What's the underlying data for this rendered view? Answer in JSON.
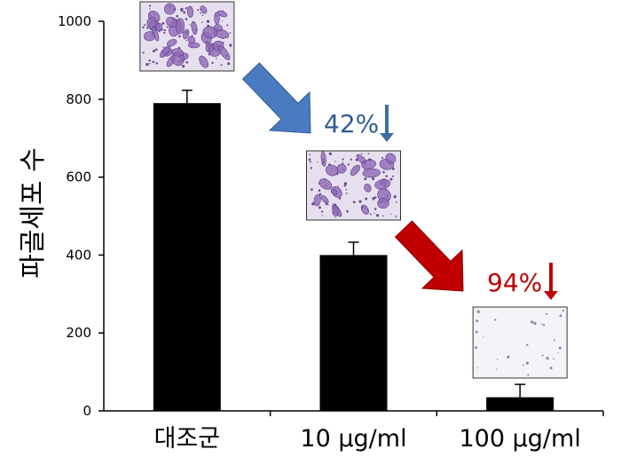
{
  "chart_data": {
    "type": "bar",
    "categories": [
      "대조군",
      "10 μg/ml",
      "100 μg/ml"
    ],
    "values": [
      790,
      400,
      35
    ],
    "errors": [
      33,
      33,
      33
    ],
    "ylabel": "파골세포 수",
    "xlabel": "",
    "title": "",
    "ylim": [
      0,
      1000
    ],
    "yticks": [
      0,
      200,
      400,
      600,
      800,
      1000
    ],
    "bar_color": "#000000",
    "annotations": [
      {
        "text": "42%",
        "color": "#2E5B93",
        "arrow_color": "#4A7BC0",
        "small_arrow_color": "#3D6DA8"
      },
      {
        "text": "94%",
        "color": "#C00000",
        "arrow_color": "#C00000",
        "small_arrow_color": "#C00000"
      }
    ],
    "micrographs": [
      {
        "label": "control-micrograph",
        "density": "high"
      },
      {
        "label": "10ug-micrograph",
        "density": "medium"
      },
      {
        "label": "100ug-micrograph",
        "density": "low"
      }
    ]
  }
}
